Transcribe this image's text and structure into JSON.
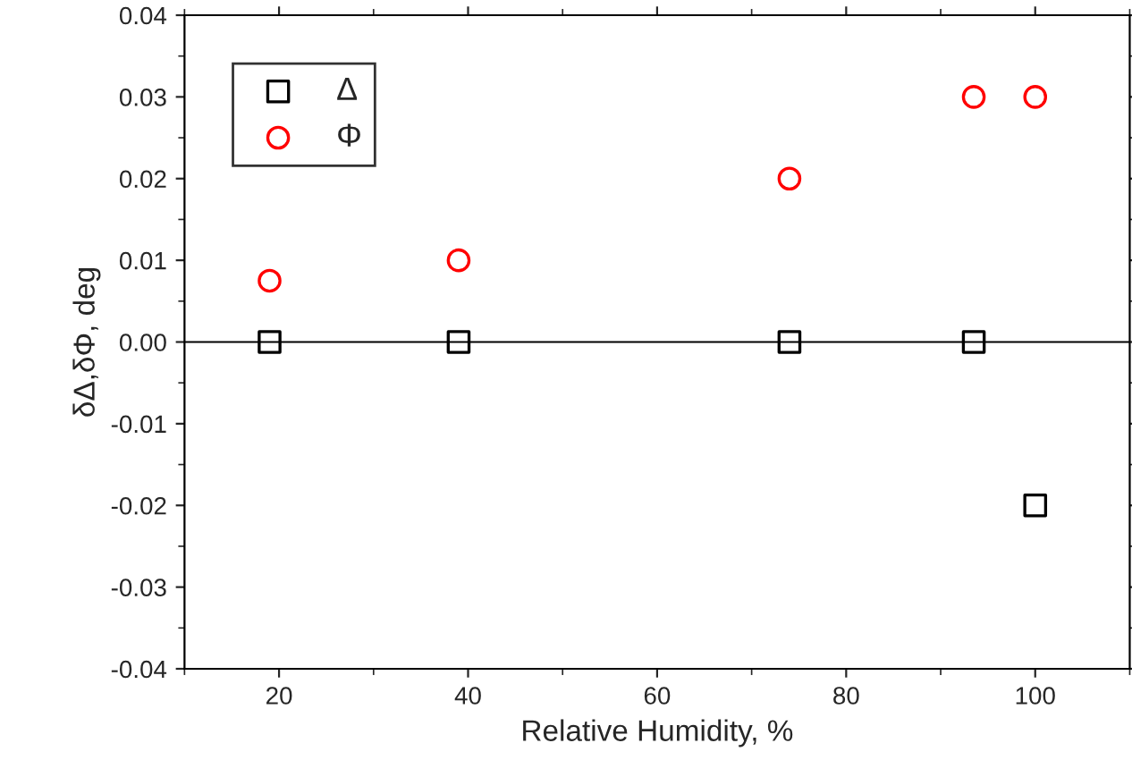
{
  "chart_data": {
    "type": "scatter",
    "xlabel": "Relative Humidity, %",
    "ylabel": "δΔ,δΦ, deg",
    "x": [
      19,
      39,
      74,
      93.5,
      100
    ],
    "series": [
      {
        "name": "Δ",
        "color": "#000000",
        "marker": "square",
        "values": [
          0,
          0,
          0,
          0,
          -0.02
        ]
      },
      {
        "name": "Φ",
        "color": "#ff0000",
        "marker": "circle",
        "values": [
          0.0075,
          0.01,
          0.02,
          0.03,
          0.03
        ]
      }
    ],
    "xlim": [
      10,
      110
    ],
    "xticks": [
      20,
      40,
      60,
      80,
      100
    ],
    "ylim": [
      -0.04,
      0.04
    ],
    "yticks": [
      -0.04,
      -0.03,
      -0.02,
      -0.01,
      {
        "value": 0,
        "label": "0.00"
      },
      0.01,
      0.02,
      0.03,
      0.04
    ],
    "ref_lines": [
      {
        "axis": "y",
        "value": 0,
        "color": "#000000"
      }
    ],
    "legend": "top left",
    "grid": false
  }
}
